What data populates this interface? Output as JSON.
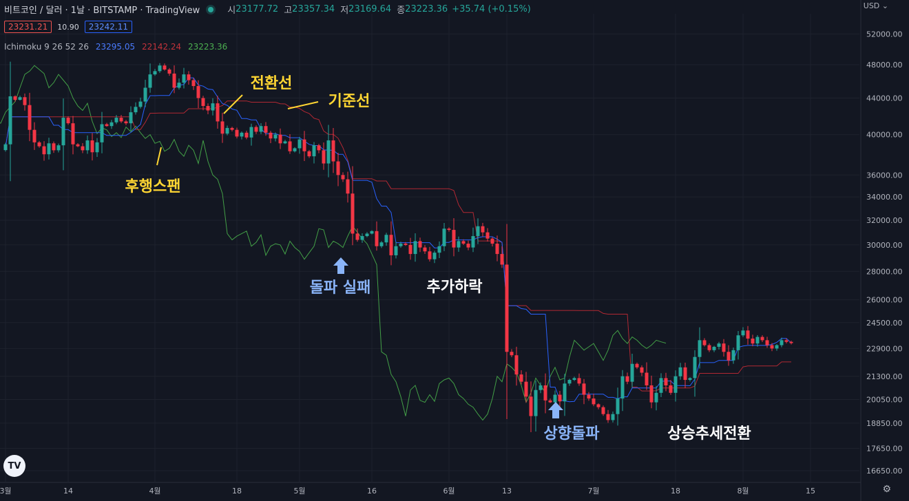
{
  "header": {
    "symbol": "비트코인 / 달러 · 1날 · BITSTAMP · TradingView",
    "open_label": "시",
    "open": "23177.72",
    "high_label": "고",
    "high": "23357.34",
    "low_label": "저",
    "low": "23169.64",
    "close_label": "종",
    "close": "23223.36",
    "change": "+35.74 (+0.15%)",
    "currency": "USD"
  },
  "quote": {
    "sell": "23231.21",
    "spread": "10.90",
    "buy": "23242.11"
  },
  "indicator": {
    "name": "Ichimoku",
    "params": "9 26 52 26",
    "v1": "23295.05",
    "v2": "22142.24",
    "v3": "23223.36"
  },
  "logo": "TV",
  "colors": {
    "background": "#131722",
    "up": "#26a69a",
    "down": "#f23645",
    "conversion": "#2962ff",
    "base": "#b22833",
    "lagging": "#43a047",
    "label_yellow": "#ffd633",
    "label_blue": "#8ab4f8",
    "label_white": "#ffffff"
  },
  "chart_data": {
    "type": "candlestick",
    "y_scale": "log",
    "y_ticks": [
      52000,
      48000,
      44000,
      40000,
      36000,
      34000,
      32000,
      30000,
      28000,
      26000,
      24500,
      22900,
      21300,
      20050,
      18850,
      17650,
      16650
    ],
    "x_ticks": [
      {
        "label": "3월",
        "t": 0
      },
      {
        "label": "14",
        "t": 13
      },
      {
        "label": "4월",
        "t": 31
      },
      {
        "label": "18",
        "t": 48
      },
      {
        "label": "5월",
        "t": 61
      },
      {
        "label": "16",
        "t": 76
      },
      {
        "label": "6월",
        "t": 92
      },
      {
        "label": "13",
        "t": 104
      },
      {
        "label": "7월",
        "t": 122
      },
      {
        "label": "18",
        "t": 139
      },
      {
        "label": "8월",
        "t": 153
      },
      {
        "label": "15",
        "t": 167
      }
    ],
    "x_range": [
      0,
      170
    ],
    "candles_close": [
      39000,
      44200,
      43800,
      44100,
      43200,
      40500,
      39200,
      38800,
      38000,
      39100,
      38400,
      38900,
      41800,
      41200,
      39000,
      38800,
      38400,
      39400,
      38200,
      39200,
      41100,
      40900,
      41300,
      41800,
      41400,
      41200,
      42400,
      43000,
      43600,
      45200,
      46800,
      47200,
      47900,
      47400,
      46900,
      45200,
      45800,
      46800,
      46100,
      45400,
      44000,
      43100,
      42600,
      43400,
      41400,
      40100,
      40700,
      40500,
      39800,
      40200,
      39700,
      40800,
      40300,
      40900,
      40200,
      39600,
      40000,
      39100,
      39300,
      38300,
      38600,
      39500,
      38300,
      37800,
      38900,
      38400,
      37100,
      39400,
      37300,
      36000,
      35600,
      34300,
      30900,
      30400,
      30700,
      30900,
      31100,
      29900,
      30200,
      30800,
      29200,
      29900,
      30100,
      30000,
      29300,
      30300,
      29800,
      29500,
      28900,
      29400,
      29900,
      31300,
      31200,
      29800,
      30300,
      30100,
      29800,
      30700,
      31500,
      31000,
      30500,
      30100,
      29300,
      28500,
      22700,
      22500,
      21400,
      21000,
      20200,
      19200,
      20550,
      20800,
      20000,
      19900,
      20300,
      19950,
      20900,
      21100,
      21200,
      20900,
      20300,
      20100,
      19800,
      19650,
      19300,
      19000,
      19300,
      20100,
      21300,
      21000,
      22000,
      21800,
      21500,
      20800,
      19900,
      20400,
      21200,
      20800,
      20400,
      21300,
      21800,
      21100,
      21200,
      22400,
      23400,
      23100,
      22800,
      23000,
      23200,
      22700,
      22200,
      22800,
      23700,
      24000,
      23500,
      23200,
      23600,
      23400,
      23100,
      22900,
      23100,
      23400,
      23300,
      23223
    ],
    "tenkan_ref": "conversion line (blue)",
    "kijun_ref": "base line (red)",
    "chikou_ref": "lagging span (green)"
  },
  "annotations": [
    {
      "text": "전환선",
      "color": "yellow"
    },
    {
      "text": "기준선",
      "color": "yellow"
    },
    {
      "text": "후행스팬",
      "color": "yellow"
    },
    {
      "text": "돌파 실패",
      "color": "blue"
    },
    {
      "text": "추가하락",
      "color": "white"
    },
    {
      "text": "상향돌파",
      "color": "blue"
    },
    {
      "text": "상승추세전환",
      "color": "white"
    }
  ]
}
